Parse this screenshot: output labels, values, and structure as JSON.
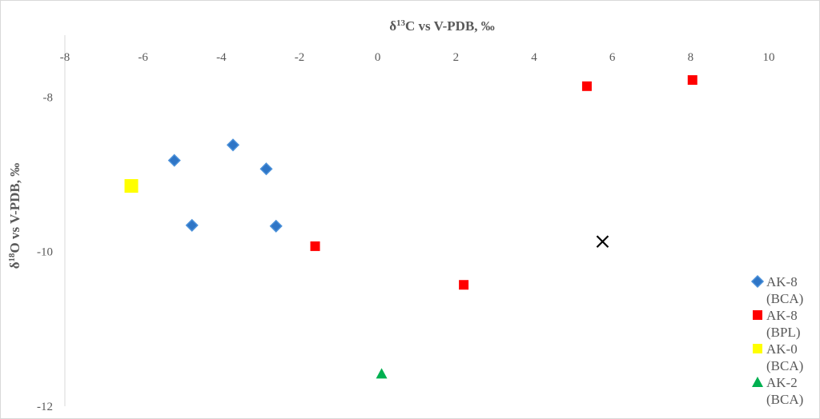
{
  "chart_data": {
    "type": "scatter",
    "xlabel_parts": [
      "δ",
      "13",
      "C vs V-PDB, ‰"
    ],
    "ylabel_parts": [
      "δ",
      "18",
      "O vs V-PDB, ‰"
    ],
    "xlim": [
      -8,
      10
    ],
    "ylim": [
      -12,
      -7.2
    ],
    "xticks": [
      "-8",
      "-6",
      "-4",
      "-2",
      "0",
      "2",
      "4",
      "6",
      "8",
      "10"
    ],
    "yticks": [
      "-8",
      "-10",
      "-12"
    ],
    "x_axis_position": "top",
    "grid": false,
    "legend_position": "right",
    "series": [
      {
        "name": "AK-8 (BCA)",
        "legend_lines": [
          "AK-8",
          "(BCA)"
        ],
        "marker": "diamond",
        "color": "#2e75c6",
        "points": [
          [
            -5.2,
            -8.82
          ],
          [
            -3.7,
            -8.62
          ],
          [
            -2.85,
            -8.93
          ],
          [
            -4.75,
            -9.66
          ],
          [
            -2.6,
            -9.67
          ]
        ]
      },
      {
        "name": "AK-8 (BPL)",
        "legend_lines": [
          "AK-8",
          "(BPL)"
        ],
        "marker": "square",
        "color": "#ff0000",
        "points": [
          [
            5.35,
            -7.86
          ],
          [
            8.05,
            -7.78
          ],
          [
            -1.6,
            -9.93
          ],
          [
            2.2,
            -10.43
          ]
        ]
      },
      {
        "name": "AK-0 (BCA)",
        "legend_lines": [
          "AK-0",
          "(BCA)"
        ],
        "marker": "square-large",
        "color": "#ffff00",
        "points": [
          [
            -6.3,
            -9.15
          ]
        ]
      },
      {
        "name": "AK-2 (BCA)",
        "legend_lines": [
          "AK-2",
          "(BCA)"
        ],
        "marker": "triangle",
        "color": "#00b050",
        "points": [
          [
            0.1,
            -11.58
          ]
        ]
      },
      {
        "name": "",
        "legend_lines": [],
        "marker": "x",
        "color": "#000000",
        "points": [
          [
            5.75,
            -9.87
          ]
        ]
      }
    ]
  }
}
